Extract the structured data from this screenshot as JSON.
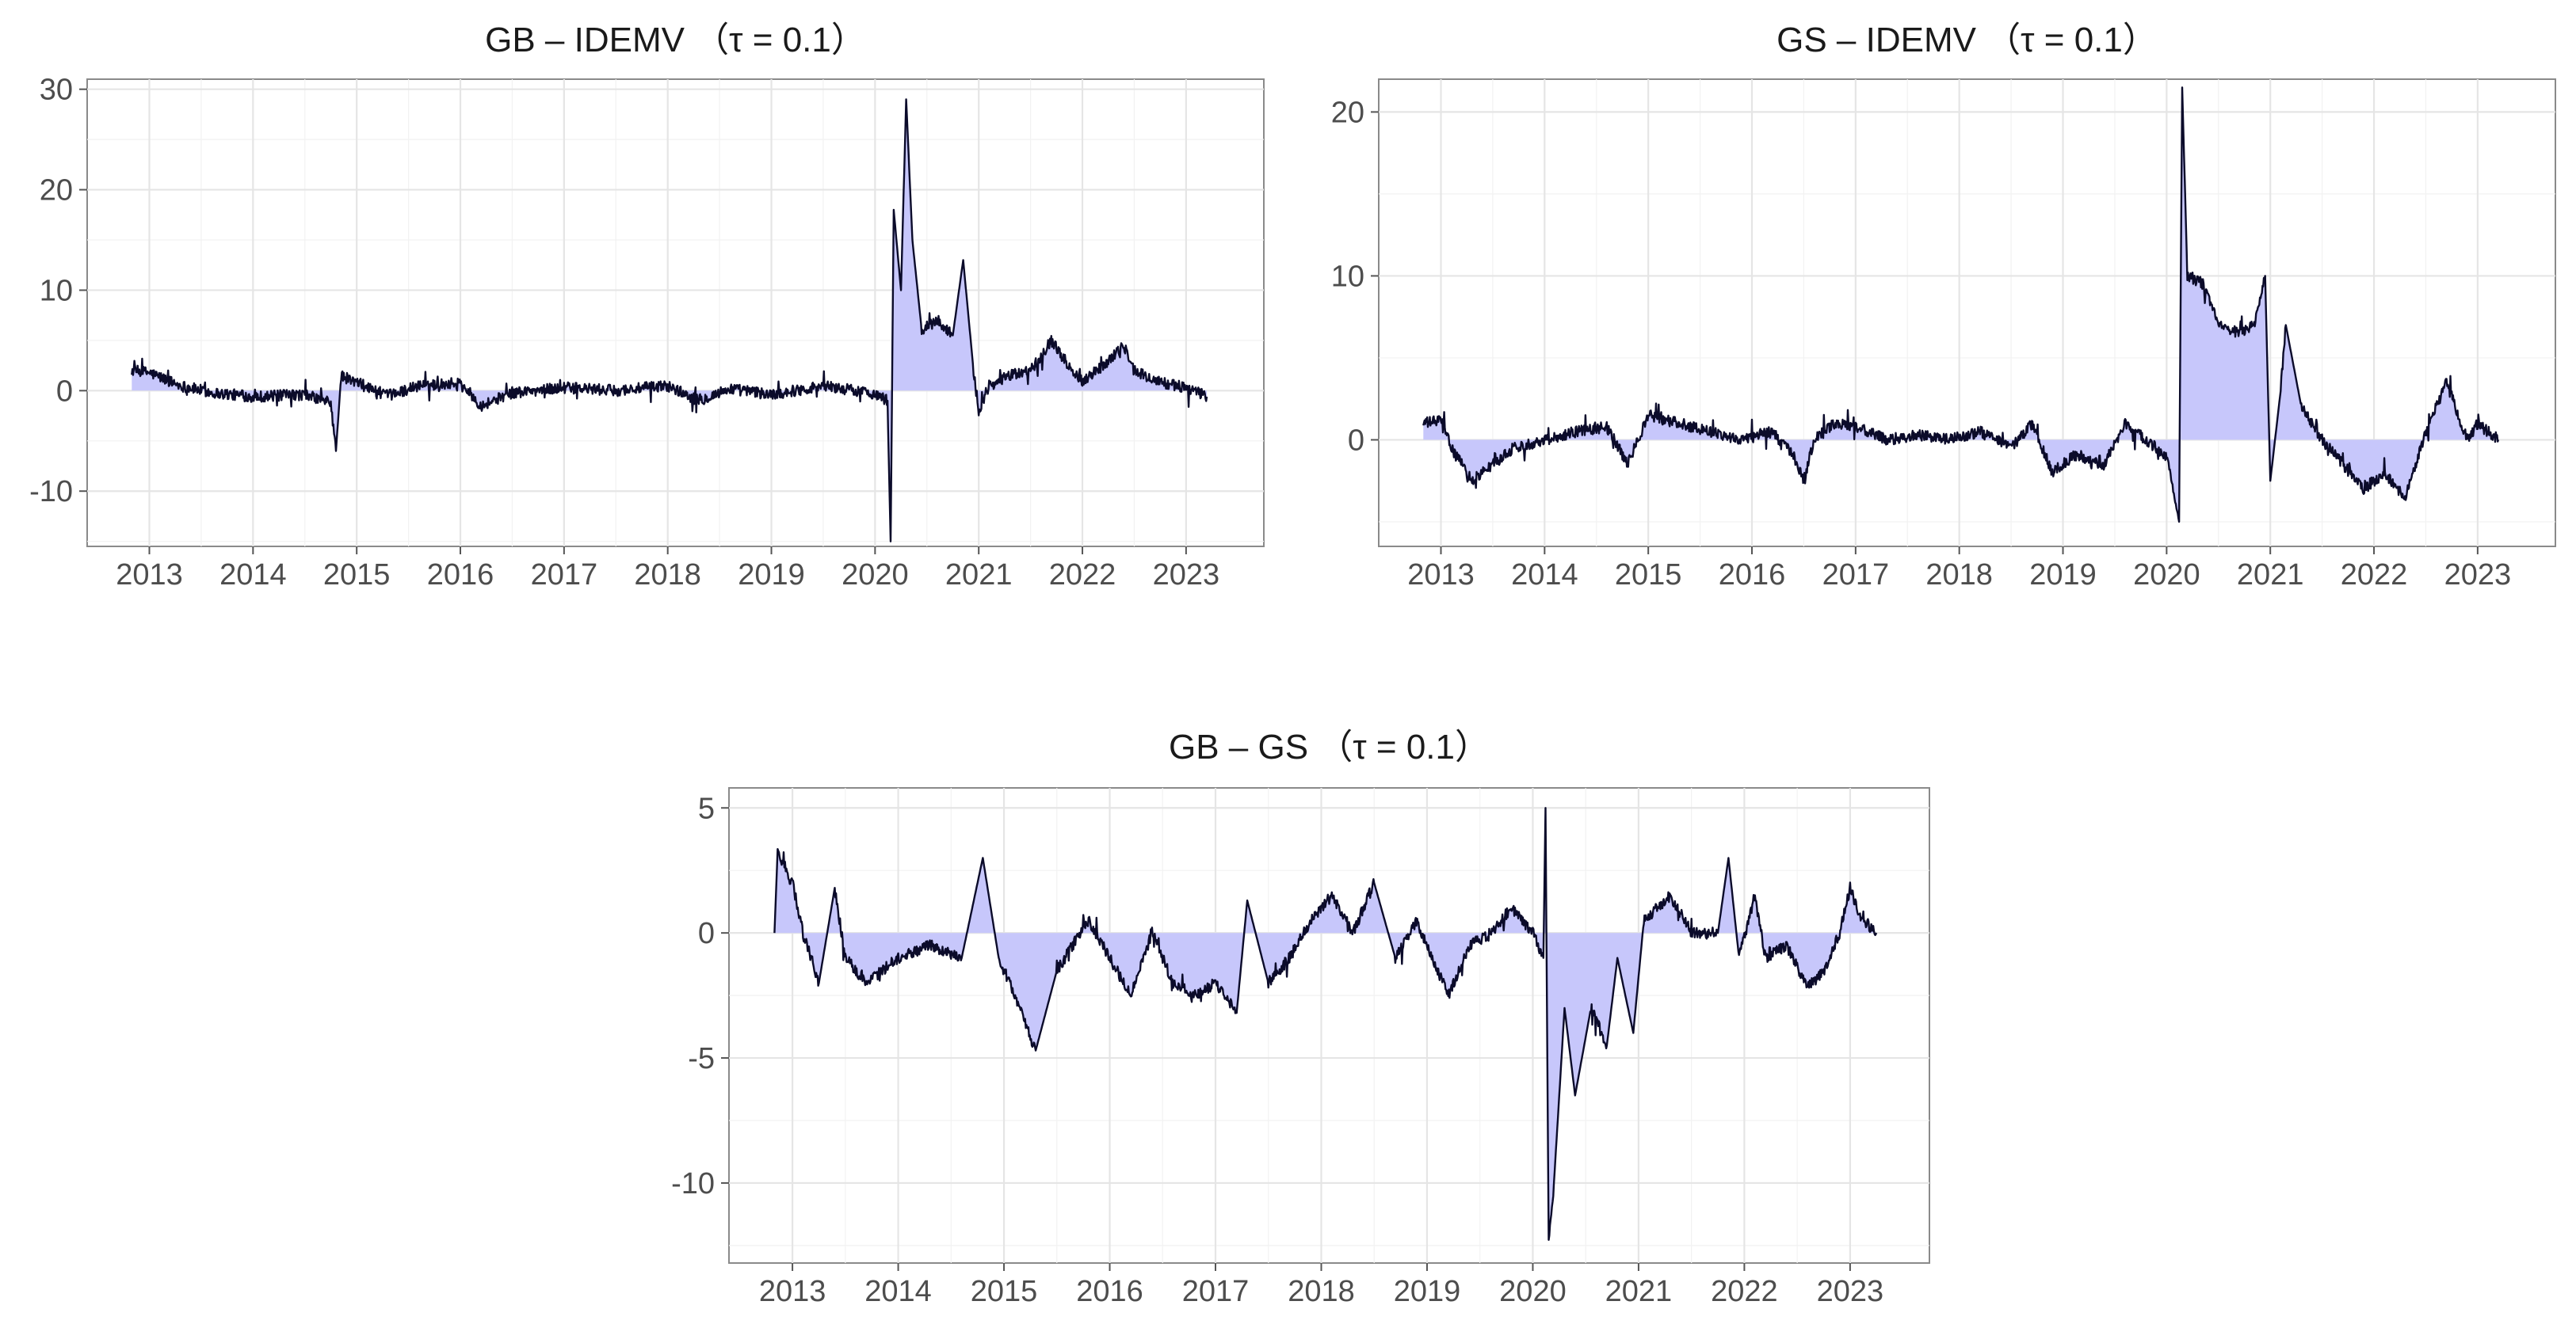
{
  "colors": {
    "line": "#0b0b2a",
    "area_fill": "#c7c7fb",
    "grid": "#e5e5e5"
  },
  "chart_data": [
    {
      "type": "area",
      "title": "GB – IDEMV （τ = 0.1）",
      "xlim": [
        2012.4,
        2023.75
      ],
      "ylim": [
        -15.5,
        31
      ],
      "x_ticks": [
        2013,
        2014,
        2015,
        2016,
        2017,
        2018,
        2019,
        2020,
        2021,
        2022,
        2023
      ],
      "y_ticks": [
        -10,
        0,
        10,
        20,
        30
      ],
      "grid": true,
      "baseline": 0,
      "series_points": [
        [
          2012.83,
          2.0
        ],
        [
          2013.0,
          1.8
        ],
        [
          2013.3,
          0.5
        ],
        [
          2013.6,
          -0.2
        ],
        [
          2014.0,
          -0.6
        ],
        [
          2014.5,
          -0.4
        ],
        [
          2014.75,
          -1.2
        ],
        [
          2014.8,
          -6.0
        ],
        [
          2014.85,
          1.5
        ],
        [
          2014.95,
          1.0
        ],
        [
          2015.3,
          -0.5
        ],
        [
          2015.6,
          0.5
        ],
        [
          2016.0,
          0.8
        ],
        [
          2016.2,
          -1.5
        ],
        [
          2016.5,
          -0.2
        ],
        [
          2017.0,
          0.3
        ],
        [
          2017.5,
          0.0
        ],
        [
          2018.0,
          0.5
        ],
        [
          2018.3,
          -1.0
        ],
        [
          2018.6,
          0.2
        ],
        [
          2019.0,
          -0.4
        ],
        [
          2019.5,
          0.5
        ],
        [
          2020.0,
          -0.3
        ],
        [
          2020.12,
          -1.0
        ],
        [
          2020.15,
          -15.0
        ],
        [
          2020.18,
          18.0
        ],
        [
          2020.25,
          10.0
        ],
        [
          2020.3,
          29.0
        ],
        [
          2020.36,
          15.0
        ],
        [
          2020.45,
          6.0
        ],
        [
          2020.6,
          7.0
        ],
        [
          2020.75,
          5.5
        ],
        [
          2020.85,
          13.0
        ],
        [
          2020.95,
          2.0
        ],
        [
          2021.0,
          -2.0
        ],
        [
          2021.1,
          0.5
        ],
        [
          2021.3,
          1.5
        ],
        [
          2021.5,
          2.0
        ],
        [
          2021.7,
          5.0
        ],
        [
          2021.9,
          2.0
        ],
        [
          2022.0,
          1.0
        ],
        [
          2022.2,
          2.5
        ],
        [
          2022.4,
          4.5
        ],
        [
          2022.5,
          2.0
        ],
        [
          2022.7,
          1.0
        ],
        [
          2022.9,
          0.5
        ],
        [
          2023.0,
          0.3
        ],
        [
          2023.2,
          -0.6
        ]
      ]
    },
    {
      "type": "area",
      "title": "GS – IDEMV （τ = 0.1）",
      "xlim": [
        2012.4,
        2023.75
      ],
      "ylim": [
        -6.5,
        22
      ],
      "x_ticks": [
        2013,
        2014,
        2015,
        2016,
        2017,
        2018,
        2019,
        2020,
        2021,
        2022,
        2023
      ],
      "y_ticks": [
        0,
        10,
        20
      ],
      "grid": true,
      "baseline": 0,
      "series_points": [
        [
          2012.83,
          1.0
        ],
        [
          2013.0,
          1.2
        ],
        [
          2013.1,
          -0.5
        ],
        [
          2013.3,
          -2.5
        ],
        [
          2013.5,
          -1.5
        ],
        [
          2013.7,
          -0.5
        ],
        [
          2014.0,
          0.0
        ],
        [
          2014.3,
          0.5
        ],
        [
          2014.6,
          0.8
        ],
        [
          2014.8,
          -1.5
        ],
        [
          2015.0,
          1.5
        ],
        [
          2015.3,
          1.0
        ],
        [
          2015.6,
          0.5
        ],
        [
          2015.9,
          0.0
        ],
        [
          2016.2,
          0.5
        ],
        [
          2016.4,
          -1.0
        ],
        [
          2016.5,
          -2.5
        ],
        [
          2016.6,
          0.0
        ],
        [
          2016.8,
          1.0
        ],
        [
          2017.0,
          0.8
        ],
        [
          2017.3,
          0.0
        ],
        [
          2017.6,
          0.3
        ],
        [
          2017.9,
          0.0
        ],
        [
          2018.2,
          0.5
        ],
        [
          2018.5,
          -0.5
        ],
        [
          2018.7,
          1.0
        ],
        [
          2018.9,
          -2.0
        ],
        [
          2019.1,
          -1.0
        ],
        [
          2019.4,
          -1.5
        ],
        [
          2019.6,
          1.0
        ],
        [
          2019.8,
          0.0
        ],
        [
          2020.0,
          -1.0
        ],
        [
          2020.12,
          -5.0
        ],
        [
          2020.15,
          21.5
        ],
        [
          2020.2,
          10.0
        ],
        [
          2020.35,
          9.5
        ],
        [
          2020.5,
          7.0
        ],
        [
          2020.7,
          6.5
        ],
        [
          2020.85,
          7.0
        ],
        [
          2020.95,
          10.0
        ],
        [
          2021.0,
          -2.5
        ],
        [
          2021.1,
          3.0
        ],
        [
          2021.15,
          7.0
        ],
        [
          2021.3,
          2.0
        ],
        [
          2021.5,
          0.0
        ],
        [
          2021.7,
          -1.5
        ],
        [
          2021.9,
          -3.0
        ],
        [
          2022.1,
          -2.0
        ],
        [
          2022.3,
          -3.5
        ],
        [
          2022.5,
          0.5
        ],
        [
          2022.7,
          3.5
        ],
        [
          2022.9,
          0.0
        ],
        [
          2023.0,
          1.0
        ],
        [
          2023.2,
          0.0
        ]
      ]
    },
    {
      "type": "area",
      "title": "GB – GS （τ = 0.1）",
      "xlim": [
        2012.4,
        2023.75
      ],
      "ylim": [
        -13.2,
        5.8
      ],
      "x_ticks": [
        2013,
        2014,
        2015,
        2016,
        2017,
        2018,
        2019,
        2020,
        2021,
        2022,
        2023
      ],
      "y_ticks": [
        -10,
        -5,
        0,
        5
      ],
      "grid": true,
      "baseline": 0,
      "series_points": [
        [
          2012.83,
          0.0
        ],
        [
          2012.86,
          3.3
        ],
        [
          2013.0,
          2.0
        ],
        [
          2013.1,
          0.0
        ],
        [
          2013.25,
          -2.0
        ],
        [
          2013.4,
          1.8
        ],
        [
          2013.5,
          -1.0
        ],
        [
          2013.7,
          -2.0
        ],
        [
          2014.0,
          -1.0
        ],
        [
          2014.3,
          -0.5
        ],
        [
          2014.6,
          -1.0
        ],
        [
          2014.8,
          3.0
        ],
        [
          2014.95,
          -1.0
        ],
        [
          2015.1,
          -2.5
        ],
        [
          2015.3,
          -4.7
        ],
        [
          2015.5,
          -1.5
        ],
        [
          2015.8,
          0.5
        ],
        [
          2016.0,
          -1.0
        ],
        [
          2016.2,
          -2.5
        ],
        [
          2016.4,
          0.0
        ],
        [
          2016.6,
          -2.0
        ],
        [
          2016.8,
          -2.5
        ],
        [
          2017.0,
          -2.0
        ],
        [
          2017.2,
          -3.2
        ],
        [
          2017.3,
          1.3
        ],
        [
          2017.5,
          -2.0
        ],
        [
          2017.7,
          -1.0
        ],
        [
          2017.9,
          0.5
        ],
        [
          2018.1,
          1.5
        ],
        [
          2018.3,
          0.0
        ],
        [
          2018.5,
          2.0
        ],
        [
          2018.7,
          -1.0
        ],
        [
          2018.9,
          0.5
        ],
        [
          2019.1,
          -1.5
        ],
        [
          2019.2,
          -2.5
        ],
        [
          2019.4,
          -0.5
        ],
        [
          2019.6,
          0.0
        ],
        [
          2019.8,
          1.0
        ],
        [
          2020.0,
          0.0
        ],
        [
          2020.1,
          -1.0
        ],
        [
          2020.12,
          5.0
        ],
        [
          2020.15,
          -12.5
        ],
        [
          2020.2,
          -10.0
        ],
        [
          2020.3,
          -3.0
        ],
        [
          2020.4,
          -6.5
        ],
        [
          2020.55,
          -3.0
        ],
        [
          2020.7,
          -4.5
        ],
        [
          2020.8,
          -1.0
        ],
        [
          2020.95,
          -4.0
        ],
        [
          2021.05,
          0.5
        ],
        [
          2021.3,
          1.5
        ],
        [
          2021.5,
          0.0
        ],
        [
          2021.75,
          0.0
        ],
        [
          2021.85,
          3.0
        ],
        [
          2021.95,
          -1.0
        ],
        [
          2022.1,
          1.5
        ],
        [
          2022.2,
          -1.0
        ],
        [
          2022.4,
          -0.5
        ],
        [
          2022.6,
          -2.2
        ],
        [
          2022.75,
          -1.5
        ],
        [
          2022.9,
          0.0
        ],
        [
          2023.0,
          1.8
        ],
        [
          2023.1,
          0.5
        ],
        [
          2023.25,
          0.0
        ]
      ]
    }
  ]
}
